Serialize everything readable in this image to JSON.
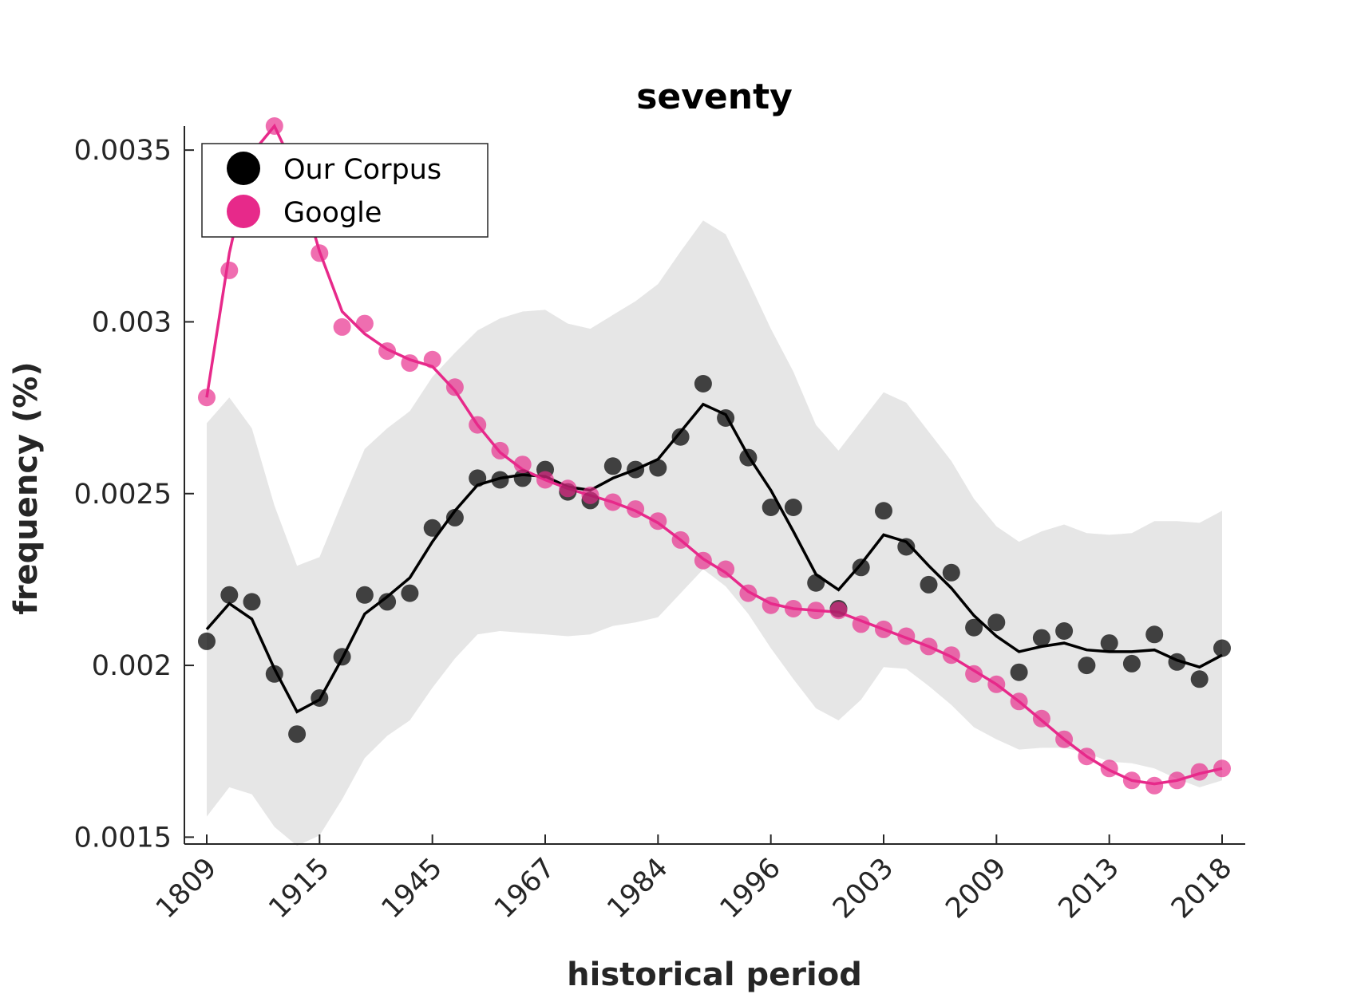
{
  "chart_data": {
    "type": "line",
    "title": "seventy",
    "xlabel": "historical period",
    "ylabel": "frequency (%)",
    "ylim": [
      0.00148,
      0.00357
    ],
    "grid": false,
    "legend_placement": "top-left",
    "x_tick_labels": [
      "1809",
      "1915",
      "1945",
      "1967",
      "1984",
      "1996",
      "2003",
      "2009",
      "2013",
      "2018"
    ],
    "y_ticks": [
      0.0015,
      0.002,
      0.0025,
      0.003,
      0.0035
    ],
    "y_tick_labels": [
      "0.0015",
      "0.002",
      "0.0025",
      "0.003",
      "0.0035"
    ],
    "colors": {
      "corpus": "#000000",
      "google": "#e7298a",
      "band": "#e6e6e6"
    },
    "series": [
      {
        "name": "Our Corpus",
        "color": "#000000",
        "points": [
          0.00207,
          0.002205,
          0.002185,
          0.001975,
          0.0018,
          0.001905,
          0.002025,
          0.002205,
          0.002185,
          0.00221,
          0.0024,
          0.00243,
          0.002545,
          0.00254,
          0.002545,
          0.00257,
          0.002505,
          0.00248,
          0.00258,
          0.00257,
          0.002575,
          0.002665,
          0.00282,
          0.00272,
          0.002605,
          0.00246,
          0.00246,
          0.00224,
          0.002165,
          0.002285,
          0.00245,
          0.002345,
          0.002235,
          0.00227,
          0.00211,
          0.002125,
          0.00198,
          0.00208,
          0.0021,
          0.002,
          0.002065,
          0.002005,
          0.00209,
          0.00201,
          0.00196,
          0.00205
        ],
        "line": [
          0.002105,
          0.00218,
          0.002135,
          0.00199,
          0.001865,
          0.0019,
          0.00202,
          0.00215,
          0.0022,
          0.002255,
          0.00236,
          0.00245,
          0.002525,
          0.002545,
          0.002555,
          0.00255,
          0.00252,
          0.00251,
          0.002545,
          0.00257,
          0.0026,
          0.00268,
          0.00276,
          0.00273,
          0.00261,
          0.00251,
          0.00239,
          0.002265,
          0.00222,
          0.002295,
          0.00238,
          0.00236,
          0.00229,
          0.002225,
          0.002145,
          0.002085,
          0.00204,
          0.002055,
          0.002065,
          0.002045,
          0.00204,
          0.00204,
          0.002045,
          0.002015,
          0.001995,
          0.00203
        ],
        "band_upper": [
          0.002705,
          0.00278,
          0.00269,
          0.002465,
          0.00229,
          0.002315,
          0.002475,
          0.00263,
          0.00269,
          0.00274,
          0.00284,
          0.00291,
          0.002975,
          0.00301,
          0.00303,
          0.003035,
          0.002995,
          0.00298,
          0.00302,
          0.00306,
          0.00311,
          0.003205,
          0.003295,
          0.003255,
          0.00312,
          0.00298,
          0.002855,
          0.0027,
          0.002625,
          0.00271,
          0.002795,
          0.002765,
          0.00268,
          0.002595,
          0.002485,
          0.002405,
          0.00236,
          0.00239,
          0.00241,
          0.002385,
          0.00238,
          0.002385,
          0.00242,
          0.00242,
          0.002415,
          0.00245
        ],
        "band_lower": [
          0.00156,
          0.001645,
          0.001625,
          0.00153,
          0.001475,
          0.001505,
          0.00161,
          0.00173,
          0.001795,
          0.00184,
          0.001935,
          0.00202,
          0.00209,
          0.0021,
          0.002095,
          0.00209,
          0.002085,
          0.00209,
          0.002115,
          0.002125,
          0.00214,
          0.00221,
          0.00228,
          0.00223,
          0.00215,
          0.00205,
          0.00196,
          0.001875,
          0.00184,
          0.0019,
          0.001995,
          0.00199,
          0.00194,
          0.001885,
          0.00182,
          0.001785,
          0.001755,
          0.00176,
          0.00176,
          0.001745,
          0.00172,
          0.001715,
          0.0017,
          0.00167,
          0.001645,
          0.001665
        ]
      },
      {
        "name": "Google",
        "color": "#e7298a",
        "points": [
          0.00278,
          0.00315,
          0.00349,
          0.00357,
          0.00343,
          0.0032,
          0.002985,
          0.002995,
          0.002915,
          0.00288,
          0.00289,
          0.00281,
          0.0027,
          0.002625,
          0.002585,
          0.00254,
          0.002515,
          0.002495,
          0.002475,
          0.002455,
          0.00242,
          0.002365,
          0.002305,
          0.00228,
          0.00221,
          0.002175,
          0.002165,
          0.00216,
          0.00216,
          0.00212,
          0.002105,
          0.002085,
          0.002055,
          0.00203,
          0.001975,
          0.001945,
          0.001895,
          0.001845,
          0.001785,
          0.001735,
          0.0017,
          0.001665,
          0.00165,
          0.001665,
          0.00169,
          0.0017
        ],
        "line": [
          0.00278,
          0.0032,
          0.00349,
          0.00357,
          0.00343,
          0.003205,
          0.00303,
          0.002965,
          0.00292,
          0.00289,
          0.00287,
          0.0028,
          0.0027,
          0.00262,
          0.00257,
          0.00254,
          0.002515,
          0.002495,
          0.002475,
          0.00245,
          0.002415,
          0.002365,
          0.00231,
          0.00227,
          0.002215,
          0.00218,
          0.002165,
          0.00216,
          0.002155,
          0.00213,
          0.002105,
          0.00208,
          0.002055,
          0.002025,
          0.001985,
          0.001945,
          0.001895,
          0.00184,
          0.001785,
          0.001735,
          0.001695,
          0.001665,
          0.001655,
          0.001665,
          0.001685,
          0.0017
        ]
      }
    ]
  }
}
